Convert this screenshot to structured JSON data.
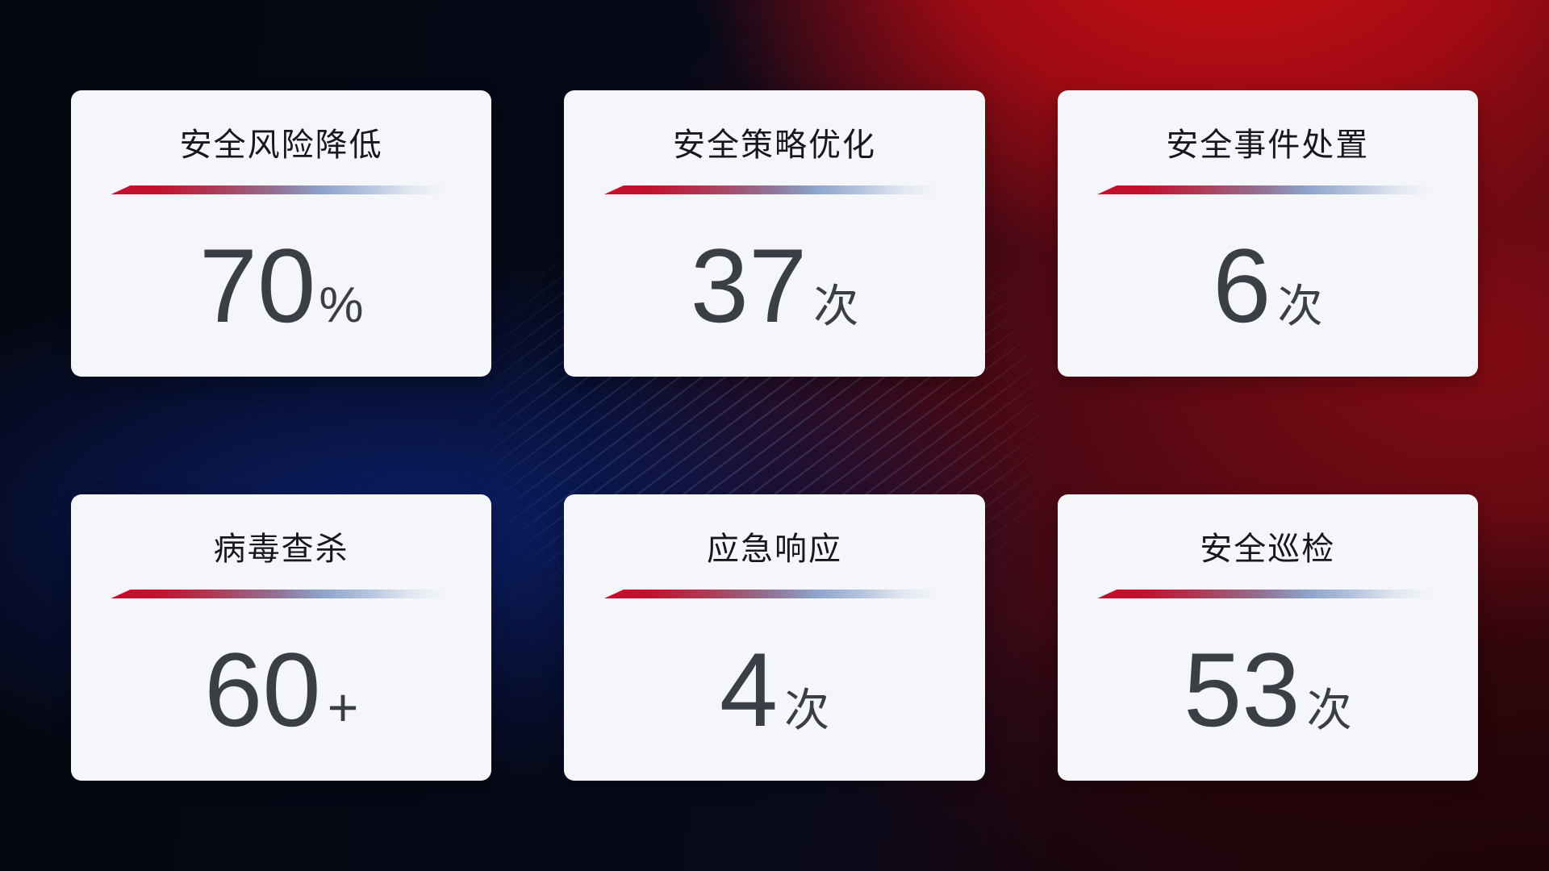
{
  "dashboard": {
    "cards": [
      {
        "title": "安全风险降低",
        "value": "70",
        "unit": "%"
      },
      {
        "title": "安全策略优化",
        "value": "37",
        "unit": "次"
      },
      {
        "title": "安全事件处置",
        "value": "6",
        "unit": "次"
      },
      {
        "title": "病毒查杀",
        "value": "60",
        "unit": "+"
      },
      {
        "title": "应急响应",
        "value": "4",
        "unit": "次"
      },
      {
        "title": "安全巡检",
        "value": "53",
        "unit": "次"
      }
    ],
    "colors": {
      "card_background": "#f5f6f9",
      "title_text": "#17181b",
      "value_text": "#3b3e44",
      "divider_red": "#c40e2e",
      "divider_blue": "#8da4cc",
      "background_red": "#b00c16",
      "background_navy": "#05070f",
      "background_blue_glow": "#10349f"
    }
  },
  "chart_data": {
    "type": "table",
    "categories": [
      "安全风险降低",
      "安全策略优化",
      "安全事件处置",
      "病毒查杀",
      "应急响应",
      "安全巡检"
    ],
    "values": [
      70,
      37,
      6,
      60,
      4,
      53
    ],
    "units": [
      "%",
      "次",
      "次",
      "+",
      "次",
      "次"
    ],
    "display_values": [
      "70%",
      "37次",
      "6次",
      "60+",
      "4次",
      "53次"
    ],
    "title": "",
    "legend": false,
    "grid": false
  }
}
